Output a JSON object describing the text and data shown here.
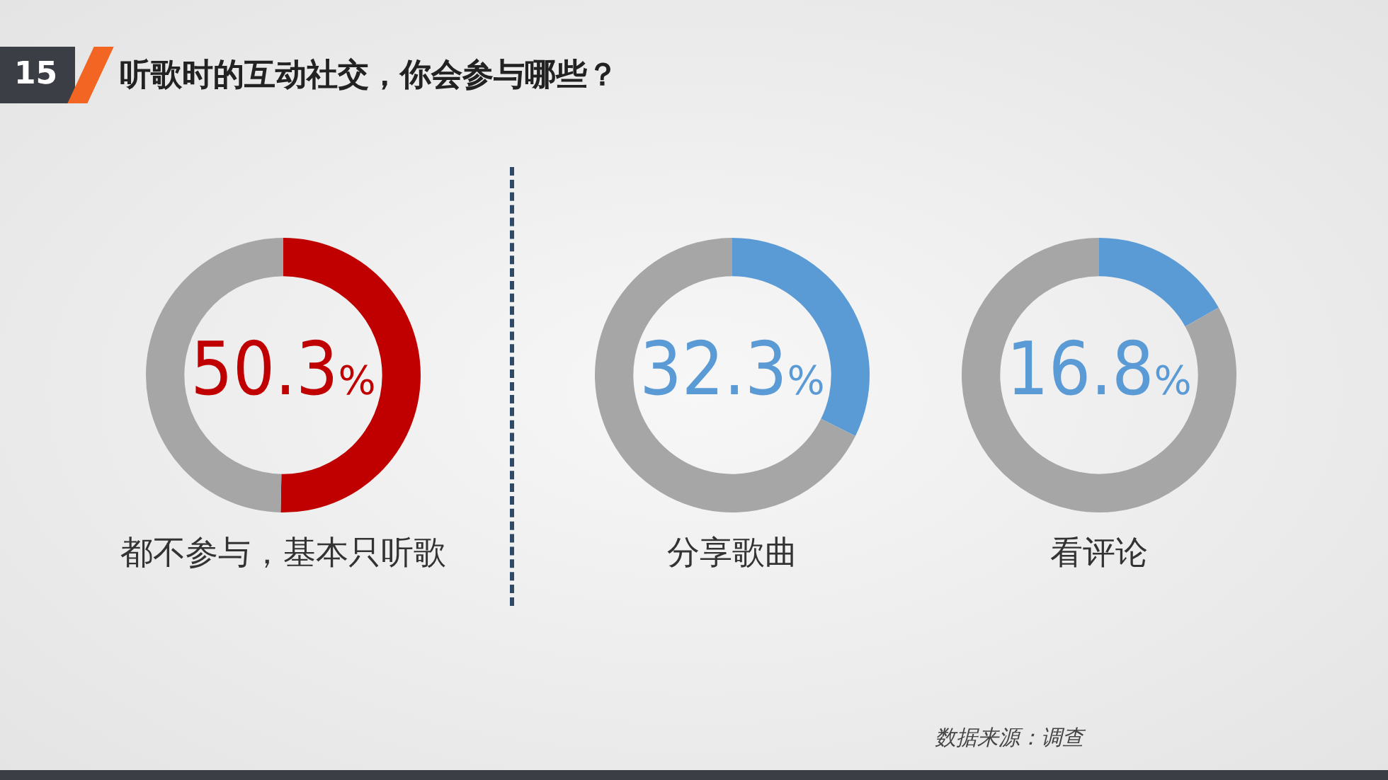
{
  "chart_data": [
    {
      "type": "donut",
      "title": "听歌时的互动社交，你会参与哪些？",
      "annotations": [
        "15"
      ],
      "xlabel": "都不参与，基本只听歌",
      "categories": [
        null,
        null
      ],
      "values": [
        50.3,
        49.7
      ],
      "colors": [
        "#c00000",
        "#a6a6a6"
      ],
      "value_labels": [
        "50.3%",
        null
      ]
    },
    {
      "type": "donut",
      "xlabel": "分享歌曲",
      "categories": [
        null,
        null
      ],
      "values": [
        32.3,
        67.7
      ],
      "colors": [
        "#5b9bd5",
        "#a6a6a6"
      ],
      "value_labels": [
        "32.3%",
        null
      ]
    },
    {
      "type": "donut",
      "annotations": [
        "数据来源：调查"
      ],
      "xlabel": "看评论",
      "categories": [
        null,
        null
      ],
      "values": [
        16.8,
        83.2
      ],
      "colors": [
        "#5b9bd5",
        "#a6a6a6"
      ],
      "value_labels": [
        "16.8%",
        null
      ]
    }
  ]
}
